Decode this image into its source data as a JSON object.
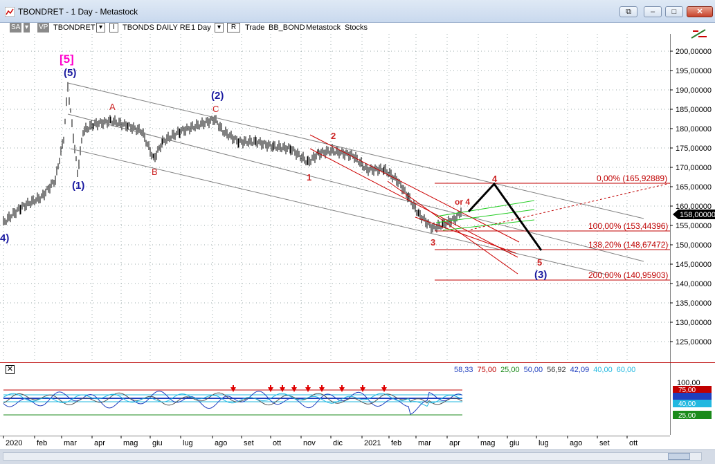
{
  "window": {
    "title": "TBONDRET - 1 Day - Metastock",
    "buttons": {
      "restore_down": "⧉",
      "minimize": "–",
      "maximize": "□",
      "close": "✕"
    }
  },
  "toolbar": {
    "sa": "SA",
    "vp": "VP",
    "symbol": "TBONDRET",
    "i_box": "I",
    "description": "TBONDS DAILY RE",
    "periodicity": "1 Day",
    "r_box": "R",
    "trade": "Trade",
    "bb_bond": "BB_BOND",
    "metastock": "Metastock",
    "stocks": "Stocks",
    "dropdown_glyph": "▾"
  },
  "price_axis": {
    "labels": [
      "200,00000",
      "195,00000",
      "190,00000",
      "185,00000",
      "180,00000",
      "175,00000",
      "170,00000",
      "165,00000",
      "160,00000",
      "155,00000",
      "150,00000",
      "145,00000",
      "140,00000",
      "135,00000",
      "130,00000",
      "125,00000"
    ],
    "last_price": "158,00000"
  },
  "wave_labels": {
    "top5": "[5]",
    "paren5": "(5)",
    "paren1": "(1)",
    "paren2": "(2)",
    "paren3": "(3)",
    "left4": "4)",
    "A": "A",
    "B": "B",
    "C": "C",
    "one": "1",
    "two": "2",
    "three": "3",
    "four": "4",
    "five": "5",
    "or4": "or 4"
  },
  "fib_levels": {
    "f0": "0,00% (165,92889)",
    "f100": "100,00% (153,44396)",
    "f138": "138,20% (148,67472)",
    "f200": "200,00% (140,95903)"
  },
  "indicator": {
    "close_glyph": "✕",
    "values": [
      "58,33",
      "75,00",
      "25,00",
      "50,00",
      "56,92",
      "42,09",
      "40,00",
      "60,00"
    ],
    "colors": [
      "#1f3fbf",
      "#c00000",
      "#1a8a1a",
      "#1f3fbf",
      "#333333",
      "#1f3fbf",
      "#22b8e0",
      "#22b8e0"
    ],
    "axis_labels": {
      "a100": "100,00",
      "a75": "75,00",
      "a25": "25,00",
      "a40": "40,00"
    }
  },
  "date_axis": {
    "labels": [
      "2020",
      "feb",
      "mar",
      "apr",
      "mag",
      "giu",
      "lug",
      "ago",
      "set",
      "ott",
      "nov",
      "dic",
      "2021",
      "feb",
      "mar",
      "apr",
      "mag",
      "giu",
      "lug",
      "ago",
      "set",
      "ott"
    ]
  },
  "colors": {
    "price_bars": "#000000",
    "channel": "#808080",
    "fib": "#c00000",
    "projection": "#000000",
    "green_channel": "#22cc22",
    "wave_blue": "#1a1aa0",
    "wave_red": "#cc2222",
    "magenta": "#ff00cc"
  }
}
